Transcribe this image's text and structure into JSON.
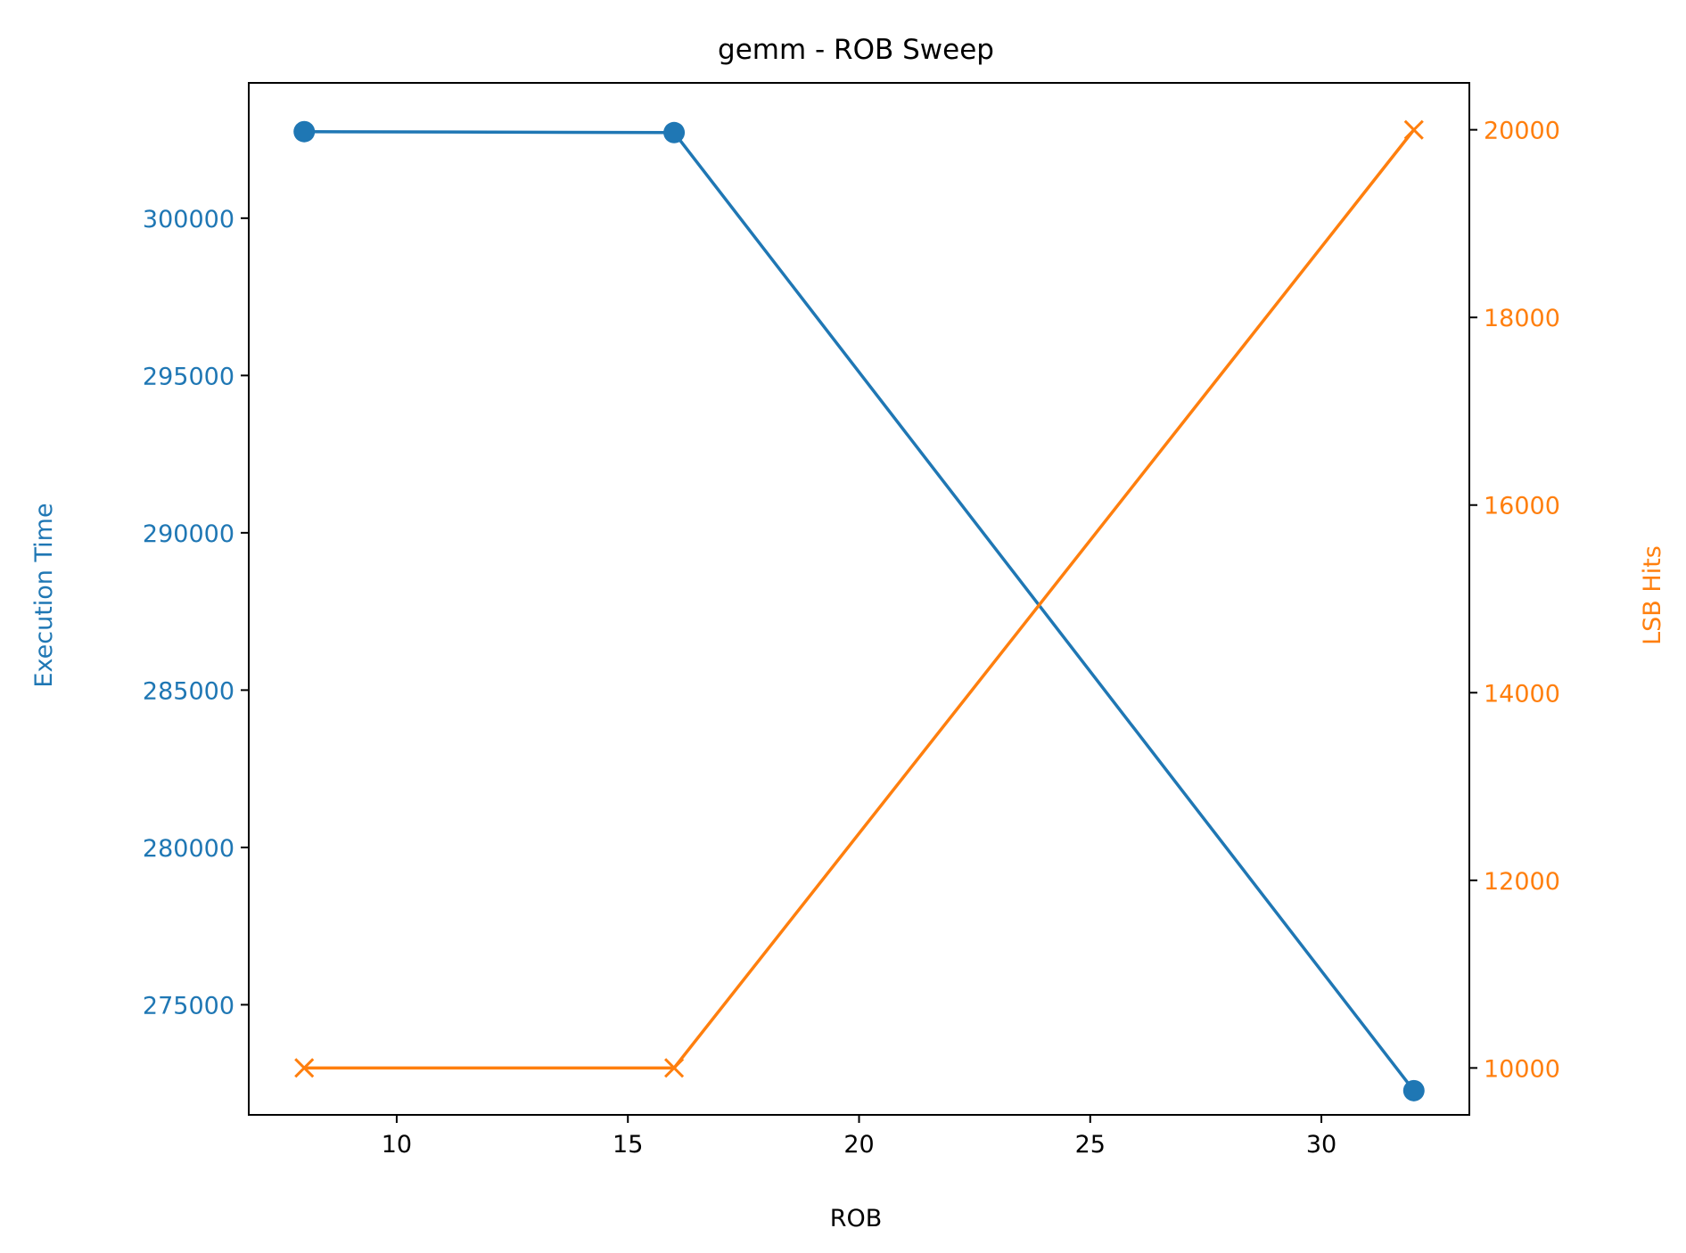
{
  "chart_data": {
    "type": "line",
    "title": "gemm - ROB Sweep",
    "xlabel": "ROB",
    "x": [
      8,
      16,
      32
    ],
    "xlim": [
      6.8,
      33.2
    ],
    "xticks": [
      10,
      15,
      20,
      25,
      30
    ],
    "grid": false,
    "legend": "none",
    "axes": {
      "left": {
        "label": "Execution Time",
        "color": "#1f77b4",
        "ylim": [
          271500,
          304300
        ],
        "ticks": [
          275000,
          280000,
          285000,
          290000,
          295000,
          300000
        ]
      },
      "right": {
        "label": "LSB Hits",
        "color": "#ff7f0e",
        "ylim": [
          9500,
          20500
        ],
        "ticks": [
          10000,
          12000,
          14000,
          16000,
          18000,
          20000
        ]
      }
    },
    "series": [
      {
        "axis": "left",
        "marker": "circle",
        "color": "#1f77b4",
        "values": [
          302750,
          302720,
          272270
        ]
      },
      {
        "axis": "right",
        "marker": "x",
        "color": "#ff7f0e",
        "values": [
          10000,
          10000,
          20000
        ]
      }
    ]
  }
}
